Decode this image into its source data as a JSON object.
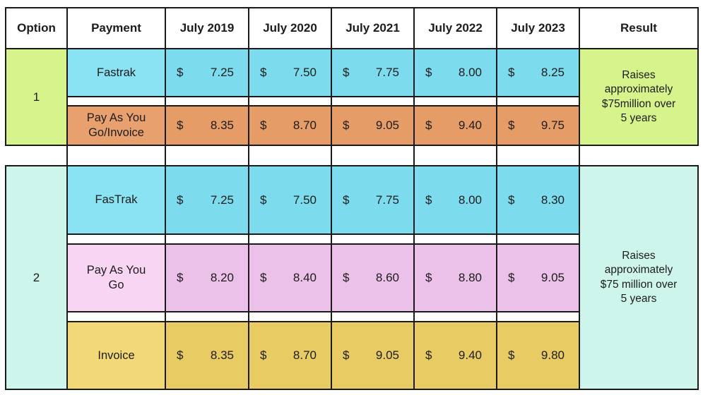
{
  "table": {
    "headers": [
      "Option",
      "Payment",
      "July 2019",
      "July 2020",
      "July 2021",
      "July 2022",
      "July 2023",
      "Result"
    ],
    "currency_symbol": "$",
    "colors": {
      "border": "#1a1a1a",
      "text": "#1c1c1c",
      "option1_green": "#d7f38b",
      "option2_teal": "#cdf5eb",
      "cyan_label": "#8ae3f3",
      "cyan_value": "#7cdcee",
      "orange_label": "#e8a06e",
      "orange_value": "#e59c66",
      "pink_label": "#f7d5f3",
      "pink_value": "#ebc1e9",
      "yellow_label": "#f3d877",
      "yellow_value": "#e9cb64"
    },
    "options": [
      {
        "label": "1",
        "result": "Raises\napproximately\n$75million over\n5 years",
        "rows": [
          {
            "payment": "Fastrak",
            "values": [
              "7.25",
              "7.50",
              "7.75",
              "8.00",
              "8.25"
            ]
          },
          {
            "payment": "Pay As You\nGo/Invoice",
            "values": [
              "8.35",
              "8.70",
              "9.05",
              "9.40",
              "9.75"
            ]
          }
        ]
      },
      {
        "label": "2",
        "result": "Raises\napproximately\n$75 million over\n5 years",
        "rows": [
          {
            "payment": "FasTrak",
            "values": [
              "7.25",
              "7.50",
              "7.75",
              "8.00",
              "8.30"
            ]
          },
          {
            "payment": "Pay As You\nGo",
            "values": [
              "8.20",
              "8.40",
              "8.60",
              "8.80",
              "9.05"
            ]
          },
          {
            "payment": "Invoice",
            "values": [
              "8.35",
              "8.70",
              "9.05",
              "9.40",
              "9.80"
            ]
          }
        ]
      }
    ]
  }
}
